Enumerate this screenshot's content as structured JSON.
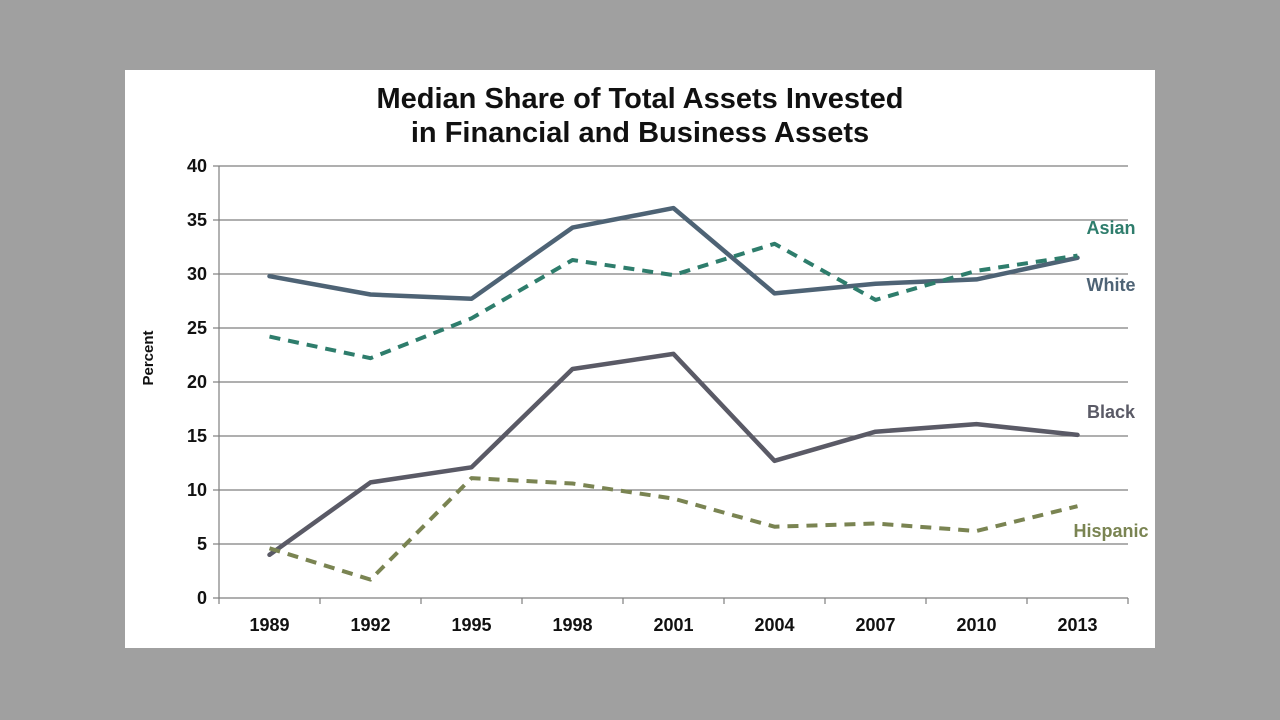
{
  "chart_data": {
    "type": "line",
    "title": [
      "Median Share of Total Assets Invested",
      "in Financial and Business Assets"
    ],
    "xlabel": "",
    "ylabel": "Percent",
    "ylim": [
      0,
      40
    ],
    "yticks": [
      0,
      5,
      10,
      15,
      20,
      25,
      30,
      35,
      40
    ],
    "grid": true,
    "categories": [
      "1989",
      "1992",
      "1995",
      "1998",
      "2001",
      "2004",
      "2007",
      "2010",
      "2013"
    ],
    "series": [
      {
        "name": "White",
        "color": "#4e6375",
        "style": "solid",
        "values": [
          29.8,
          28.1,
          27.7,
          34.3,
          36.1,
          28.2,
          29.1,
          29.5,
          31.5
        ]
      },
      {
        "name": "Asian",
        "color": "#2e7d6c",
        "style": "dashed",
        "values": [
          24.2,
          22.2,
          25.9,
          31.3,
          29.9,
          32.8,
          27.6,
          30.3,
          31.7
        ]
      },
      {
        "name": "Black",
        "color": "#5a5a66",
        "style": "solid",
        "values": [
          4.0,
          10.7,
          12.1,
          21.2,
          22.6,
          12.7,
          15.4,
          16.1,
          15.1
        ]
      },
      {
        "name": "Hispanic",
        "color": "#7a8452",
        "style": "dashed",
        "values": [
          4.6,
          1.7,
          11.1,
          10.6,
          9.2,
          6.6,
          6.9,
          6.2,
          8.5
        ]
      }
    ]
  }
}
